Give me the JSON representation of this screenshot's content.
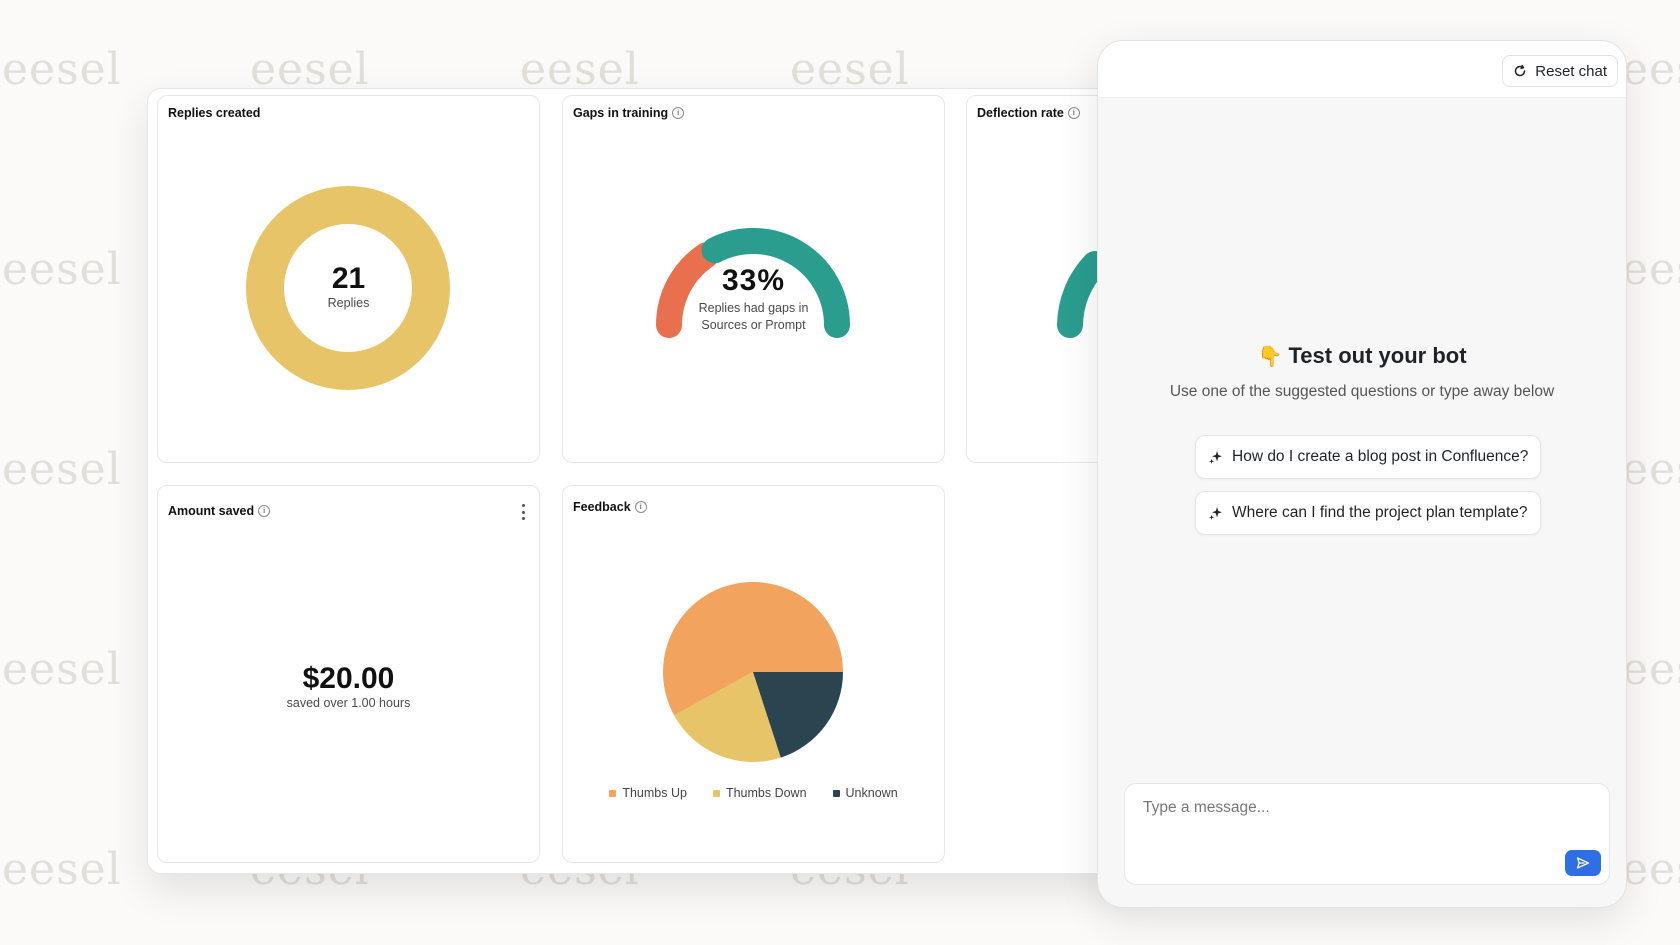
{
  "watermark": "eesel",
  "cards": {
    "replies": {
      "title": "Replies created",
      "value": "21",
      "caption": "Replies",
      "color": "#e8c468"
    },
    "gaps": {
      "title": "Gaps in training",
      "value": "33%",
      "caption_line1": "Replies had gaps in",
      "caption_line2": "Sources or Prompt",
      "percent": 33,
      "colors": {
        "gap": "#e8704f",
        "ok": "#2a9d8f"
      }
    },
    "deflection": {
      "title": "Deflection rate"
    },
    "amount": {
      "title": "Amount saved",
      "value": "$20.00",
      "caption": "saved over 1.00 hours"
    },
    "feedback": {
      "title": "Feedback"
    }
  },
  "chart_data": {
    "type": "pie",
    "slices": [
      {
        "label": "Thumbs Up",
        "value": 58,
        "color": "#f2a45f"
      },
      {
        "label": "Thumbs Down",
        "value": 22,
        "color": "#e8c468"
      },
      {
        "label": "Unknown",
        "value": 20,
        "color": "#2b4550"
      }
    ]
  },
  "chat": {
    "reset_label": "Reset chat",
    "title_emoji": "👇",
    "title": "Test out your bot",
    "subtitle": "Use one of the suggested questions or type away below",
    "suggestions": [
      "How do I create a blog post in Confluence?",
      "Where can I find the project plan template?"
    ],
    "input_placeholder": "Type a message..."
  }
}
